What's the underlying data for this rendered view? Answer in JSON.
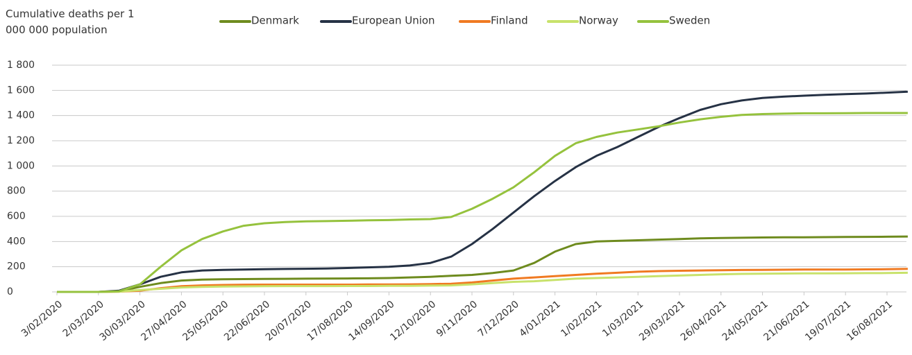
{
  "chart_data": {
    "type": "line",
    "title": "Cumulative deaths per 1 000 000 population",
    "categories": [
      "3/02/2020",
      null,
      "2/03/2020",
      null,
      "30/03/2020",
      null,
      "27/04/2020",
      null,
      "25/05/2020",
      null,
      "22/06/2020",
      null,
      "20/07/2020",
      null,
      "17/08/2020",
      null,
      "14/09/2020",
      null,
      "12/10/2020",
      null,
      "9/11/2020",
      null,
      "7/12/2020",
      null,
      "4/01/2021",
      null,
      "1/02/2021",
      null,
      "1/03/2021",
      null,
      "29/03/2021",
      null,
      "26/04/2021",
      null,
      "24/05/2021",
      null,
      "21/06/2021",
      null,
      "19/07/2021",
      null,
      "16/08/2021",
      null
    ],
    "series": [
      {
        "name": "Denmark",
        "color": "#6e8b1e",
        "values": [
          0,
          0,
          0,
          5,
          40,
          70,
          90,
          98,
          100,
          102,
          103,
          104,
          105,
          106,
          107,
          108,
          110,
          115,
          120,
          128,
          135,
          150,
          170,
          230,
          320,
          380,
          400,
          405,
          410,
          415,
          420,
          425,
          428,
          430,
          432,
          433,
          434,
          435,
          436,
          437,
          438,
          440
        ]
      },
      {
        "name": "European Union",
        "color": "#263245",
        "values": [
          0,
          0,
          0,
          10,
          60,
          120,
          155,
          170,
          175,
          178,
          180,
          182,
          184,
          186,
          190,
          195,
          200,
          210,
          230,
          280,
          380,
          500,
          630,
          760,
          880,
          990,
          1080,
          1150,
          1230,
          1310,
          1380,
          1445,
          1490,
          1520,
          1540,
          1550,
          1558,
          1565,
          1570,
          1575,
          1582,
          1590
        ]
      },
      {
        "name": "Finland",
        "color": "#f07a22",
        "values": [
          0,
          0,
          0,
          2,
          10,
          30,
          45,
          52,
          55,
          57,
          58,
          58,
          58,
          58,
          58,
          59,
          59,
          60,
          62,
          65,
          75,
          90,
          105,
          115,
          125,
          135,
          145,
          152,
          160,
          165,
          168,
          170,
          172,
          174,
          175,
          176,
          177,
          177,
          178,
          179,
          180,
          183
        ]
      },
      {
        "name": "Norway",
        "color": "#c8e26b",
        "values": [
          0,
          0,
          0,
          2,
          15,
          25,
          35,
          40,
          43,
          44,
          45,
          46,
          46,
          46,
          47,
          47,
          48,
          48,
          50,
          52,
          60,
          70,
          80,
          85,
          95,
          105,
          110,
          115,
          120,
          125,
          130,
          135,
          140,
          143,
          145,
          146,
          147,
          147,
          148,
          149,
          150,
          152
        ]
      },
      {
        "name": "Sweden",
        "color": "#95c23d",
        "values": [
          0,
          0,
          0,
          5,
          60,
          200,
          330,
          420,
          480,
          525,
          545,
          555,
          560,
          562,
          565,
          568,
          570,
          575,
          578,
          595,
          660,
          740,
          830,
          950,
          1080,
          1180,
          1230,
          1265,
          1290,
          1315,
          1345,
          1370,
          1390,
          1405,
          1412,
          1415,
          1418,
          1418,
          1419,
          1420,
          1420,
          1420
        ]
      }
    ],
    "ylim": [
      0,
      1800
    ],
    "yticks": [
      0,
      200,
      400,
      600,
      800,
      {
        "value": 1000,
        "label": "1 000"
      },
      {
        "value": 1200,
        "label": "1 200"
      },
      {
        "value": 1400,
        "label": "1 400"
      },
      {
        "value": 1600,
        "label": "1 600"
      },
      {
        "value": 1800,
        "label": "1 800"
      }
    ],
    "grid": true
  }
}
